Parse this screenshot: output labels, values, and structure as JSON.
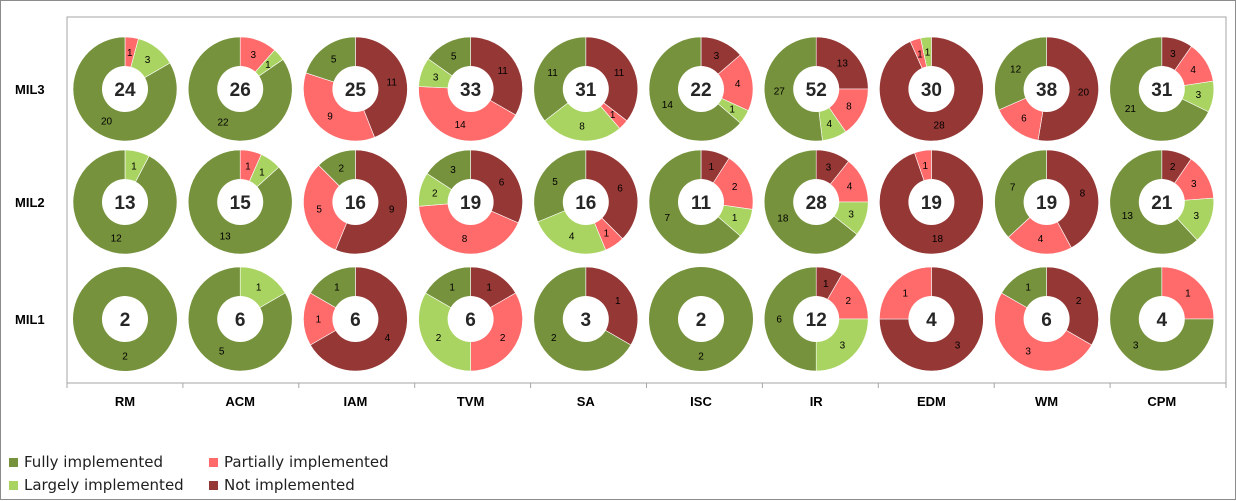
{
  "colors": {
    "fully": "#76923c",
    "largely": "#a9d461",
    "partially": "#ff6b6b",
    "not": "#953735",
    "hole": "#ffffff",
    "plot_border": "#a6a6a6"
  },
  "legend": [
    {
      "key": "fully",
      "label": "Fully implemented"
    },
    {
      "key": "partially",
      "label": "Partially implemented"
    },
    {
      "key": "largely",
      "label": "Largely implemented"
    },
    {
      "key": "not",
      "label": "Not implemented"
    }
  ],
  "chart_data": {
    "type": "pie",
    "subtype": "donut-grid",
    "title": "",
    "rows": [
      "MIL3",
      "MIL2",
      "MIL1"
    ],
    "categories": [
      "RM",
      "ACM",
      "IAM",
      "TVM",
      "SA",
      "ISC",
      "IR",
      "EDM",
      "WM",
      "CPM"
    ],
    "slice_order": [
      "not",
      "partially",
      "largely",
      "fully"
    ],
    "series": [
      {
        "name": "Fully implemented",
        "key": "fully",
        "values": {
          "MIL3": [
            20,
            22,
            5,
            5,
            11,
            14,
            27,
            0,
            12,
            21
          ],
          "MIL2": [
            12,
            13,
            2,
            3,
            5,
            7,
            18,
            0,
            7,
            13
          ],
          "MIL1": [
            2,
            5,
            1,
            1,
            2,
            2,
            6,
            0,
            1,
            3
          ]
        }
      },
      {
        "name": "Largely implemented",
        "key": "largely",
        "values": {
          "MIL3": [
            3,
            1,
            0,
            3,
            8,
            1,
            4,
            1,
            0,
            3
          ],
          "MIL2": [
            1,
            1,
            0,
            2,
            4,
            1,
            3,
            0,
            0,
            3
          ],
          "MIL1": [
            0,
            1,
            0,
            2,
            0,
            0,
            3,
            0,
            0,
            0
          ]
        }
      },
      {
        "name": "Partially implemented",
        "key": "partially",
        "values": {
          "MIL3": [
            1,
            3,
            9,
            14,
            1,
            4,
            8,
            1,
            6,
            4
          ],
          "MIL2": [
            0,
            1,
            5,
            8,
            1,
            2,
            4,
            1,
            4,
            3
          ],
          "MIL1": [
            0,
            0,
            1,
            2,
            0,
            0,
            2,
            1,
            3,
            1
          ]
        }
      },
      {
        "name": "Not implemented",
        "key": "not",
        "values": {
          "MIL3": [
            0,
            0,
            11,
            11,
            11,
            3,
            13,
            28,
            20,
            3
          ],
          "MIL2": [
            0,
            0,
            9,
            6,
            6,
            1,
            3,
            18,
            8,
            2
          ],
          "MIL1": [
            0,
            0,
            4,
            1,
            1,
            0,
            1,
            3,
            2,
            0
          ]
        }
      }
    ],
    "totals": {
      "MIL3": [
        24,
        26,
        25,
        33,
        31,
        22,
        52,
        30,
        38,
        31
      ],
      "MIL2": [
        13,
        15,
        16,
        19,
        16,
        11,
        28,
        19,
        19,
        21
      ],
      "MIL1": [
        2,
        6,
        6,
        6,
        3,
        2,
        12,
        4,
        6,
        4
      ]
    },
    "legend_position": "bottom-left",
    "grid": false
  }
}
